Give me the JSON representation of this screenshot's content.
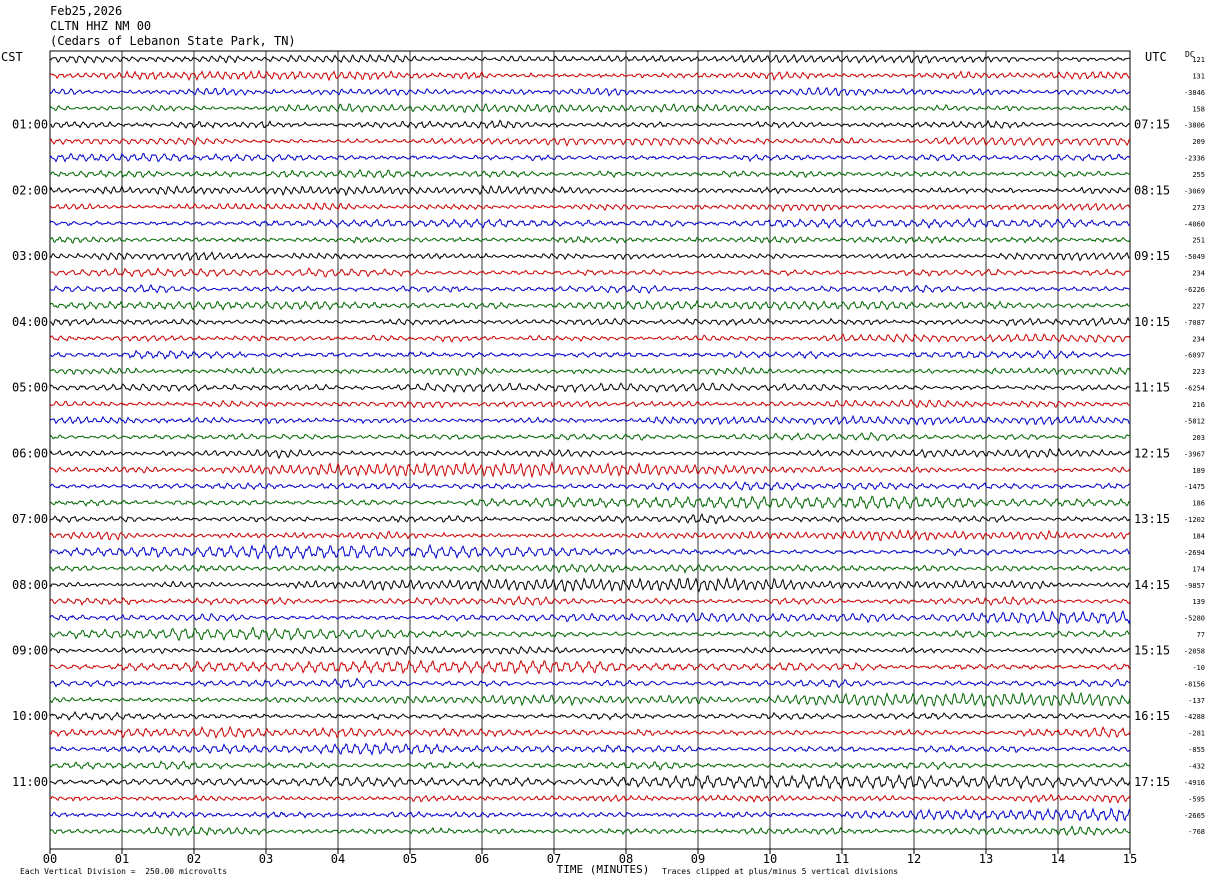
{
  "header": {
    "date": "Feb25,2026",
    "station": "CLTN HHZ NM 00",
    "location": "(Cedars of Lebanon State Park, TN)"
  },
  "left_tz": "CST",
  "right_tz": "UTC",
  "dc_label": "DC",
  "footer": {
    "scale": "Each Vertical Division =  250.00 microvolts",
    "clip": "Traces clipped at plus/minus 5 vertical divisions"
  },
  "colors": {
    "trace_cycle": [
      "#000000",
      "#cc0000",
      "#0000cc",
      "#006600"
    ],
    "grid": "#000000"
  },
  "chart_data": {
    "type": "line",
    "title": "",
    "xlabel": "TIME (MINUTES)",
    "x_ticks": [
      "00",
      "01",
      "02",
      "03",
      "04",
      "05",
      "06",
      "07",
      "08",
      "09",
      "10",
      "11",
      "12",
      "13",
      "14",
      "15"
    ],
    "xlim": [
      0,
      15
    ],
    "traces_per_hour": 4,
    "left_hour_labels": [
      "01:00",
      "02:00",
      "03:00",
      "04:00",
      "05:00",
      "06:00",
      "07:00",
      "08:00",
      "09:00",
      "10:00",
      "11:00"
    ],
    "right_hour_labels": [
      "07:15",
      "08:15",
      "09:15",
      "10:15",
      "11:15",
      "12:15",
      "13:15",
      "14:15",
      "15:15",
      "16:15",
      "17:15"
    ],
    "dc_offsets": [
      "121",
      "131",
      "-3846",
      "158",
      "-3806",
      "209",
      "-2336",
      "255",
      "-3069",
      "273",
      "-4060",
      "251",
      "-5049",
      "234",
      "-6226",
      "227",
      "-7087",
      "234",
      "-6097",
      "223",
      "-6254",
      "216",
      "-5812",
      "203",
      "-3967",
      "189",
      "-1475",
      "186",
      "-1202",
      "184",
      "-2694",
      "174",
      "-9857",
      "139",
      "-5280",
      "77",
      "-2058",
      "-10",
      "-8156",
      "-137",
      "-4288",
      "-281",
      "-855",
      "-432",
      "-4916",
      "-595",
      "-2665",
      "-768"
    ],
    "scale_microvolts_per_division": 250.0
  }
}
